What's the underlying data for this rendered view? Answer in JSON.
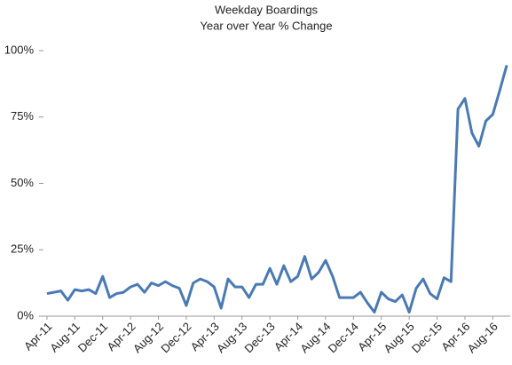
{
  "chart_data": {
    "type": "line",
    "title": "Weekday Boardings",
    "subtitle": "Year over Year % Change",
    "categories": [
      "Apr-11",
      null,
      null,
      null,
      "Aug-11",
      null,
      null,
      null,
      "Dec-11",
      null,
      null,
      null,
      "Apr-12",
      null,
      null,
      null,
      "Aug-12",
      null,
      null,
      null,
      "Dec-12",
      null,
      null,
      null,
      "Apr-13",
      null,
      null,
      null,
      "Aug-13",
      null,
      null,
      null,
      "Dec-13",
      null,
      null,
      null,
      "Apr-14",
      null,
      null,
      null,
      "Aug-14",
      null,
      null,
      null,
      "Dec-14",
      null,
      null,
      null,
      "Apr-15",
      null,
      null,
      null,
      "Aug-15",
      null,
      null,
      null,
      "Dec-15",
      null,
      null,
      null,
      "Apr-16",
      null,
      null,
      null,
      "Aug-16",
      null,
      null
    ],
    "series": [
      {
        "name": "Weekday Boardings",
        "color": "#4a7ab5",
        "values": [
          8.5,
          9,
          9.5,
          6,
          10,
          9.5,
          10,
          8.5,
          15,
          7,
          8.5,
          9,
          11,
          12,
          9,
          12.5,
          11.5,
          13,
          11.5,
          10.5,
          4,
          12.5,
          14,
          13,
          11,
          3,
          14,
          11,
          11,
          7,
          12,
          12,
          18,
          12,
          19,
          13,
          15,
          22.5,
          14,
          16.5,
          21,
          15,
          7,
          7,
          7,
          9,
          5,
          1.5,
          9,
          6.5,
          5.5,
          8,
          1.5,
          10.5,
          14,
          8.5,
          6.5,
          14.5,
          13,
          78,
          82,
          69,
          64,
          73.5,
          76,
          85,
          94.5
        ]
      }
    ],
    "ylim": [
      0,
      100
    ],
    "yticks": [
      {
        "value": 0,
        "label": "0%"
      },
      {
        "value": 25,
        "label": "25%"
      },
      {
        "value": 50,
        "label": "50%"
      },
      {
        "value": 75,
        "label": "75%"
      },
      {
        "value": 100,
        "label": "100%"
      }
    ],
    "grid": false
  }
}
